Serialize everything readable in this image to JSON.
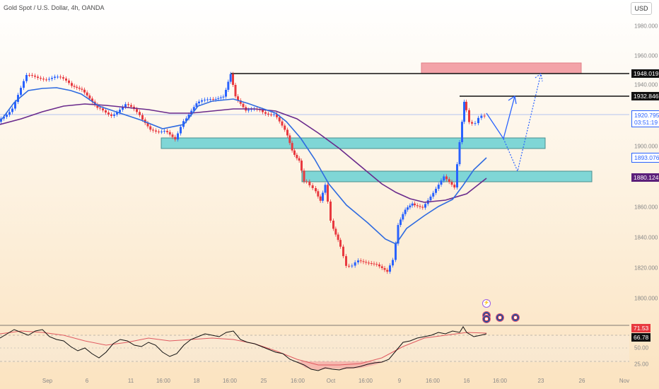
{
  "header": {
    "title": "Gold Spot / U.S. Dollar, 4h, OANDA",
    "currency_button": "USD"
  },
  "price_axis": {
    "labels": [
      "1980.000",
      "1960.000",
      "1940.000",
      "1900.000",
      "1860.000",
      "1840.000",
      "1820.000",
      "1800.000"
    ]
  },
  "price_tags": {
    "resistance_high": "1948.019",
    "resistance_mid": "1932.846",
    "last_price": "1920.795",
    "countdown": "03:51:19",
    "ma_fast": "1893.076",
    "ma_slow": "1880.124"
  },
  "rsi_tags": {
    "upper": "71.53",
    "current": "66.78",
    "level_50": "50.00",
    "level_25": "25.00"
  },
  "time_axis": {
    "labels": [
      "Sep",
      "6",
      "11",
      "16:00",
      "18",
      "16:00",
      "25",
      "16:00",
      "Oct",
      "16:00",
      "9",
      "16:00",
      "16",
      "16:00",
      "23",
      "26",
      "Nov"
    ]
  },
  "colors": {
    "bull": "#2962ff",
    "bear": "#e8393f",
    "ma_fast": "#2f6be0",
    "ma_slow": "#6a2a8c",
    "zone": "#7fd6d6",
    "supply_zone": "#f3a3a8"
  },
  "icons": {
    "events": [
      "lightning-icon",
      "us-flag-icon",
      "us-flag-icon",
      "us-flag-icon",
      "us-flag-icon"
    ]
  }
}
